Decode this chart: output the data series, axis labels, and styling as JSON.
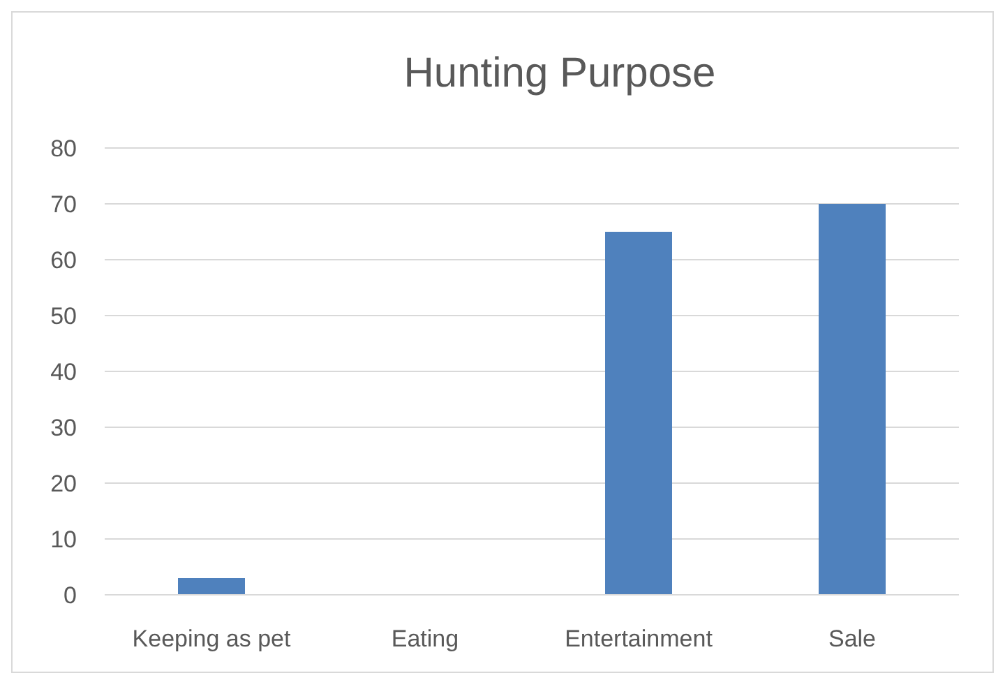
{
  "chart_data": {
    "type": "bar",
    "title": "Hunting Purpose",
    "categories": [
      "Keeping as pet",
      "Eating",
      "Entertainment",
      "Sale"
    ],
    "values": [
      3,
      0,
      65,
      70
    ],
    "color": "#4f81bd",
    "ylim": [
      0,
      80
    ],
    "yticks": [
      0,
      10,
      20,
      30,
      40,
      50,
      60,
      70,
      80
    ],
    "grid": "y"
  }
}
